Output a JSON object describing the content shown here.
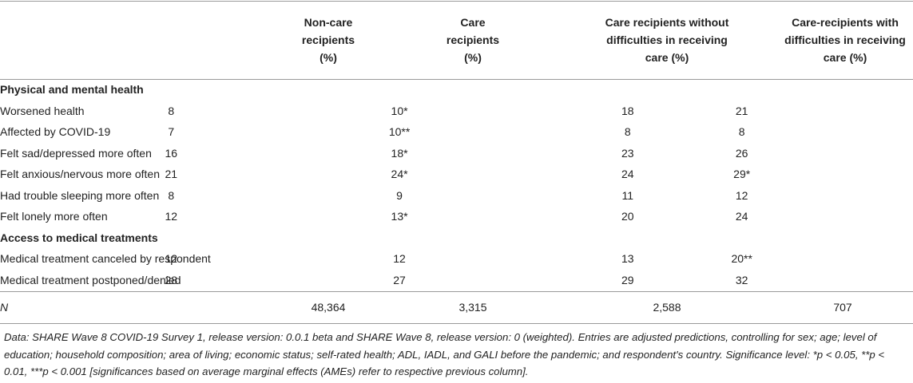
{
  "headers": {
    "col1": [
      "Non-care",
      "recipients",
      "(%)"
    ],
    "col2": [
      "Care",
      "recipients",
      "(%)"
    ],
    "col3": [
      "Care recipients without",
      "difficulties in receiving",
      "care (%)"
    ],
    "col4": [
      "Care-recipients with",
      "difficulties in receiving",
      "care (%)"
    ]
  },
  "sections": [
    {
      "title": "Physical and mental health",
      "rows": [
        {
          "label": "Worsened health",
          "v1": "8",
          "v2": "10*",
          "v3": "18",
          "v4": "21"
        },
        {
          "label": "Affected by COVID-19",
          "v1": "7",
          "v2": "10**",
          "v3": "8",
          "v4": "8"
        },
        {
          "label": "Felt sad/depressed more often",
          "v1": "16",
          "v2": "18*",
          "v3": "23",
          "v4": "26"
        },
        {
          "label": "Felt anxious/nervous more often",
          "v1": "21",
          "v2": "24*",
          "v3": "24",
          "v4": "29*"
        },
        {
          "label": "Had trouble sleeping more often",
          "v1": "8",
          "v2": "9",
          "v3": "11",
          "v4": "12"
        },
        {
          "label": "Felt lonely more often",
          "v1": "12",
          "v2": "13*",
          "v3": "20",
          "v4": "24"
        }
      ]
    },
    {
      "title": "Access to medical treatments",
      "rows": [
        {
          "label": "Medical treatment canceled by respondent",
          "v1": "12",
          "v2": "12",
          "v3": "13",
          "v4": "20**"
        },
        {
          "label": "Medical treatment postponed/denied",
          "v1": "28",
          "v2": "27",
          "v3": "29",
          "v4": "32"
        }
      ]
    }
  ],
  "n_row": {
    "label": "N",
    "v1": "48,364",
    "v2": "3,315",
    "v3": "2,588",
    "v4": "707"
  },
  "footnote": "Data: SHARE Wave 8 COVID-19 Survey 1, release version: 0.0.1 beta and SHARE Wave 8, release version: 0 (weighted). Entries are adjusted predictions, controlling for sex; age; level of education; household composition; area of living; economic status; self-rated health; ADL, IADL, and GALI before the pandemic; and respondent's country. Significance level: *p < 0.05, **p < 0.01, ***p < 0.001 [significances based on average marginal effects (AMEs) refer to respective previous column]."
}
